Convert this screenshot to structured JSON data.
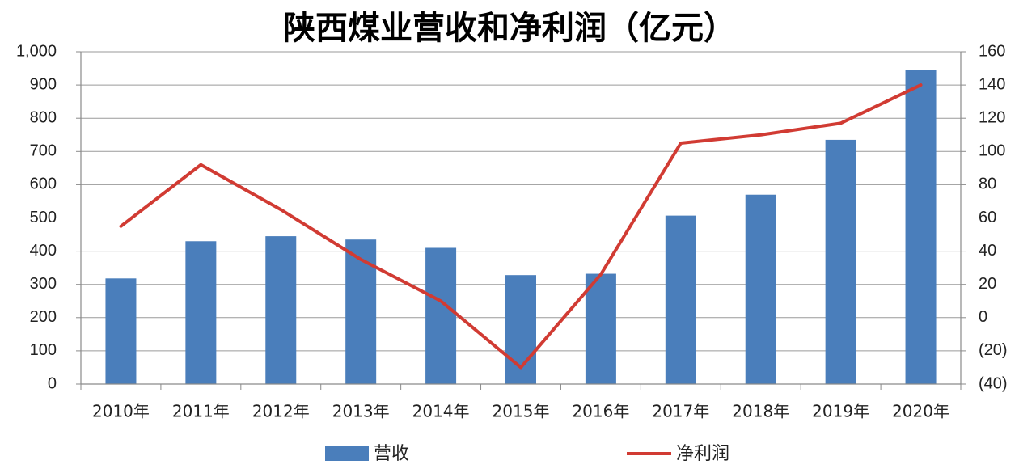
{
  "chart_data": {
    "type": "bar+line",
    "title": "陕西煤业营收和净利润（亿元）",
    "categories": [
      "2010年",
      "2011年",
      "2012年",
      "2013年",
      "2014年",
      "2015年",
      "2016年",
      "2017年",
      "2018年",
      "2019年",
      "2020年"
    ],
    "series": [
      {
        "name": "营收",
        "type": "bar",
        "axis": "left",
        "color": "#4a7ebb",
        "values": [
          318,
          430,
          445,
          435,
          410,
          328,
          332,
          507,
          570,
          735,
          945
        ]
      },
      {
        "name": "净利润",
        "type": "line",
        "axis": "right",
        "color": "#d13b33",
        "values": [
          55,
          92,
          65,
          35,
          10,
          -30,
          26,
          105,
          110,
          117,
          140
        ]
      }
    ],
    "ylim_left": [
      0,
      1000
    ],
    "yticks_left": [
      "0",
      "100",
      "200",
      "300",
      "400",
      "500",
      "600",
      "700",
      "800",
      "900",
      "1,000"
    ],
    "ylim_right": [
      -40,
      160
    ],
    "yticks_right": [
      "(40)",
      "(20)",
      "0",
      "20",
      "40",
      "60",
      "80",
      "100",
      "120",
      "140",
      "160"
    ],
    "grid": true,
    "legend_position": "bottom"
  }
}
